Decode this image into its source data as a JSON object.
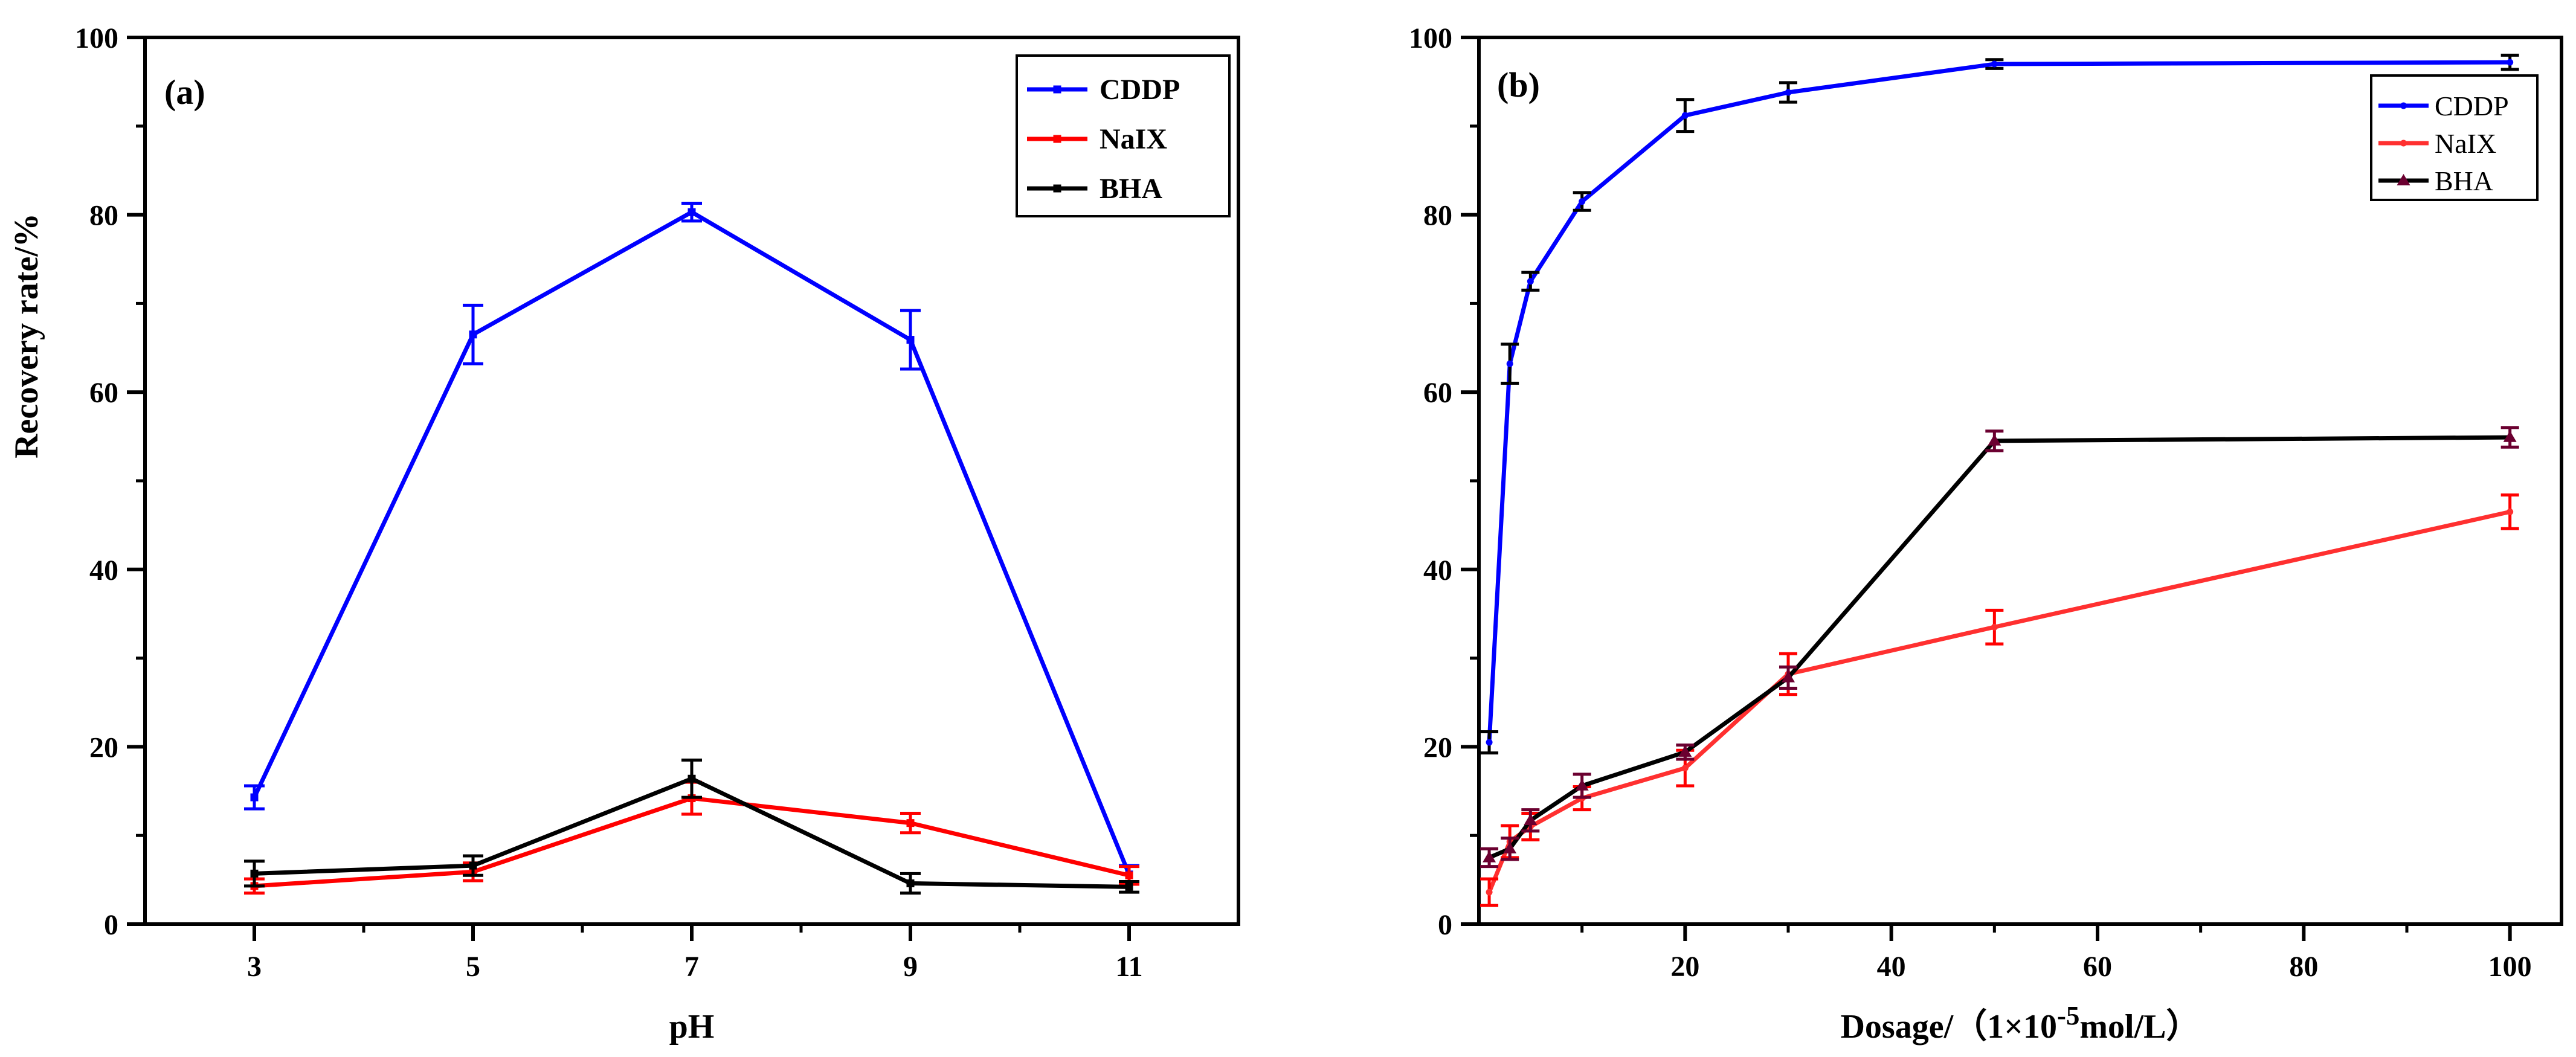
{
  "chart_data": [
    {
      "id": "a",
      "type": "line",
      "panel_label": "(a)",
      "title": "",
      "xlabel": "pH",
      "ylabel": "Recovery rate/%",
      "xlim": [
        2,
        12
      ],
      "ylim": [
        0,
        100
      ],
      "xticks": [
        3,
        5,
        7,
        9,
        11
      ],
      "yticks": [
        0,
        20,
        40,
        60,
        80,
        100
      ],
      "x": [
        3,
        5,
        7,
        9,
        11
      ],
      "legend_position": "top-right",
      "series": [
        {
          "name": "CDDP",
          "color": "#0000ff",
          "marker": "square",
          "legend_bold": true,
          "values": [
            14.3,
            66.5,
            80.3,
            65.9,
            5.6
          ],
          "errors": [
            1.3,
            3.3,
            1.0,
            3.3,
            1.0
          ]
        },
        {
          "name": "NaIX",
          "color": "#ff0000",
          "marker": "square",
          "legend_bold": true,
          "values": [
            4.3,
            5.9,
            14.2,
            11.4,
            5.5
          ],
          "errors": [
            0.8,
            1.0,
            1.8,
            1.1,
            1.0
          ]
        },
        {
          "name": "BHA",
          "color": "#000000",
          "marker": "square",
          "legend_bold": true,
          "values": [
            5.7,
            6.6,
            16.4,
            4.6,
            4.2
          ],
          "errors": [
            1.4,
            1.1,
            2.1,
            1.1,
            0.6
          ]
        }
      ]
    },
    {
      "id": "b",
      "type": "line",
      "panel_label": "(b)",
      "title": "",
      "xlabel": "Dosage/（1×10",
      "xlabel_sup": "-5",
      "xlabel_suffix": "mol/L）",
      "ylabel": "Recovery rate/%",
      "xlim": [
        0,
        105
      ],
      "ylim": [
        0,
        100
      ],
      "xticks": [
        20,
        40,
        60,
        80,
        100
      ],
      "yticks": [
        0,
        20,
        40,
        60,
        80,
        100
      ],
      "x": [
        1,
        3,
        5,
        10,
        20,
        30,
        50,
        100
      ],
      "legend_position": "top-right",
      "series": [
        {
          "name": "CDDP",
          "color": "#0000ff",
          "error_color": "#000000",
          "marker": "dot",
          "legend_bold": false,
          "values": [
            20.5,
            63.2,
            72.5,
            81.5,
            91.2,
            93.8,
            97.0,
            97.2
          ],
          "errors": [
            1.2,
            2.2,
            1.0,
            1.0,
            1.8,
            1.1,
            0.5,
            0.8
          ]
        },
        {
          "name": "NaIX",
          "color": "#ff3030",
          "error_color": "#ff0000",
          "marker": "dot",
          "legend_bold": false,
          "values": [
            3.6,
            9.3,
            11.0,
            14.2,
            17.6,
            28.2,
            33.5,
            46.5
          ],
          "errors": [
            1.5,
            1.8,
            1.5,
            1.3,
            2.0,
            2.3,
            1.9,
            1.9
          ]
        },
        {
          "name": "BHA",
          "color": "#000000",
          "error_color": "#6b0030",
          "marker": "triangle",
          "legend_bold": false,
          "values": [
            7.5,
            8.5,
            11.7,
            15.6,
            19.4,
            27.8,
            54.5,
            54.9
          ],
          "errors": [
            1.0,
            1.2,
            1.2,
            1.3,
            0.8,
            1.2,
            1.1,
            1.1
          ]
        }
      ]
    }
  ]
}
